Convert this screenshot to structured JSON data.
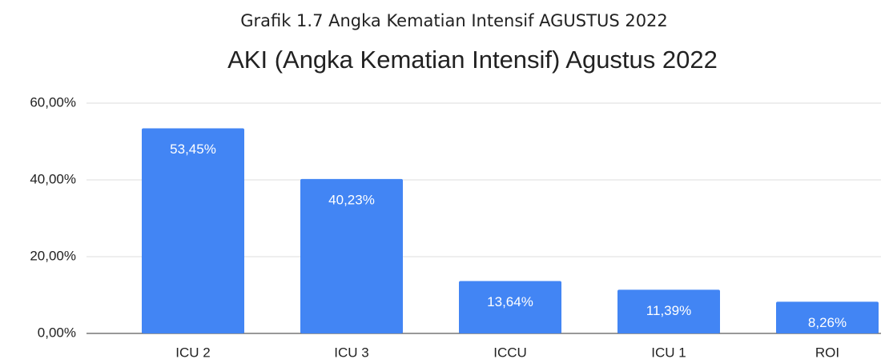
{
  "chart_data": {
    "type": "bar",
    "caption": "Grafik 1.7 Angka Kematian Intensif AGUSTUS 2022",
    "title": "AKI (Angka Kematian Intensif) Agustus 2022",
    "categories": [
      "ICU 2",
      "ICU 3",
      "ICCU",
      "ICU 1",
      "ROI"
    ],
    "values": [
      53.45,
      40.23,
      13.64,
      11.39,
      8.26
    ],
    "value_labels": [
      "53,45%",
      "40,23%",
      "13,64%",
      "11,39%",
      "8,26%"
    ],
    "color": "#4285f4",
    "ylim": [
      0,
      60
    ],
    "yticks": [
      {
        "value": 0,
        "label": "0,00%"
      },
      {
        "value": 20,
        "label": "20,00%"
      },
      {
        "value": 40,
        "label": "40,00%"
      },
      {
        "value": 60,
        "label": "60,00%"
      }
    ],
    "grid": true
  }
}
